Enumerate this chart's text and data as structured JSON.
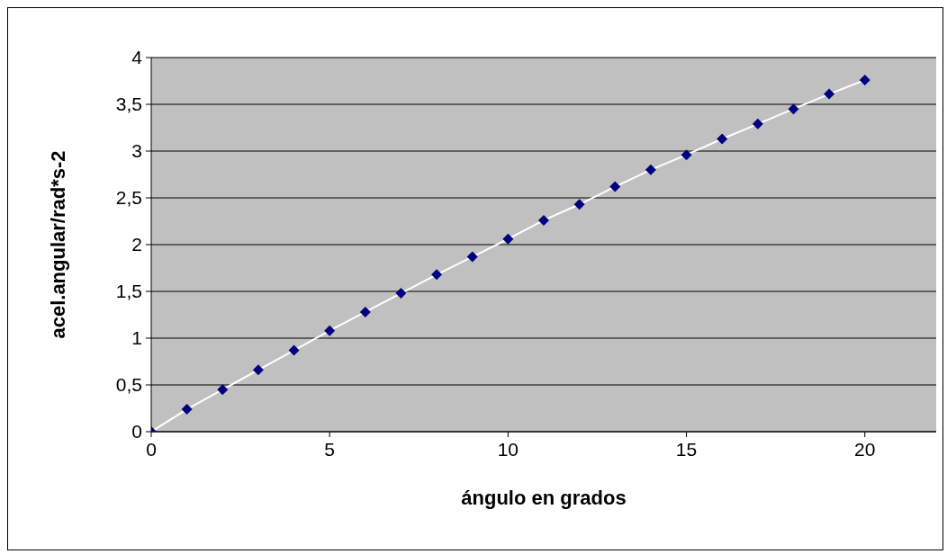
{
  "chart_data": {
    "type": "line",
    "xlabel": "ángulo en grados",
    "ylabel": "acel.angular/rad*s-2",
    "x": [
      0,
      1,
      2,
      3,
      4,
      5,
      6,
      7,
      8,
      9,
      10,
      11,
      12,
      13,
      14,
      15,
      16,
      17,
      18,
      19,
      20
    ],
    "series": [
      {
        "color": "#000080",
        "values": [
          0,
          0.24,
          0.45,
          0.66,
          0.87,
          1.08,
          1.28,
          1.48,
          1.68,
          1.87,
          2.06,
          2.26,
          2.43,
          2.62,
          2.8,
          2.96,
          3.13,
          3.29,
          3.45,
          3.61,
          3.76
        ]
      }
    ],
    "xlim": [
      0,
      22
    ],
    "xticks": [
      0,
      5,
      10,
      15,
      20
    ],
    "ylim": [
      0,
      4
    ],
    "yticks": [
      0,
      {
        "value": 0.5,
        "label": "0,5"
      },
      1,
      {
        "value": 1.5,
        "label": "1,5"
      },
      2,
      {
        "value": 2.5,
        "label": "2,5"
      },
      3,
      {
        "value": 3.5,
        "label": "3,5"
      },
      4
    ],
    "grid": "y",
    "marker": "diamond",
    "line_style": "solid",
    "legend": false
  }
}
